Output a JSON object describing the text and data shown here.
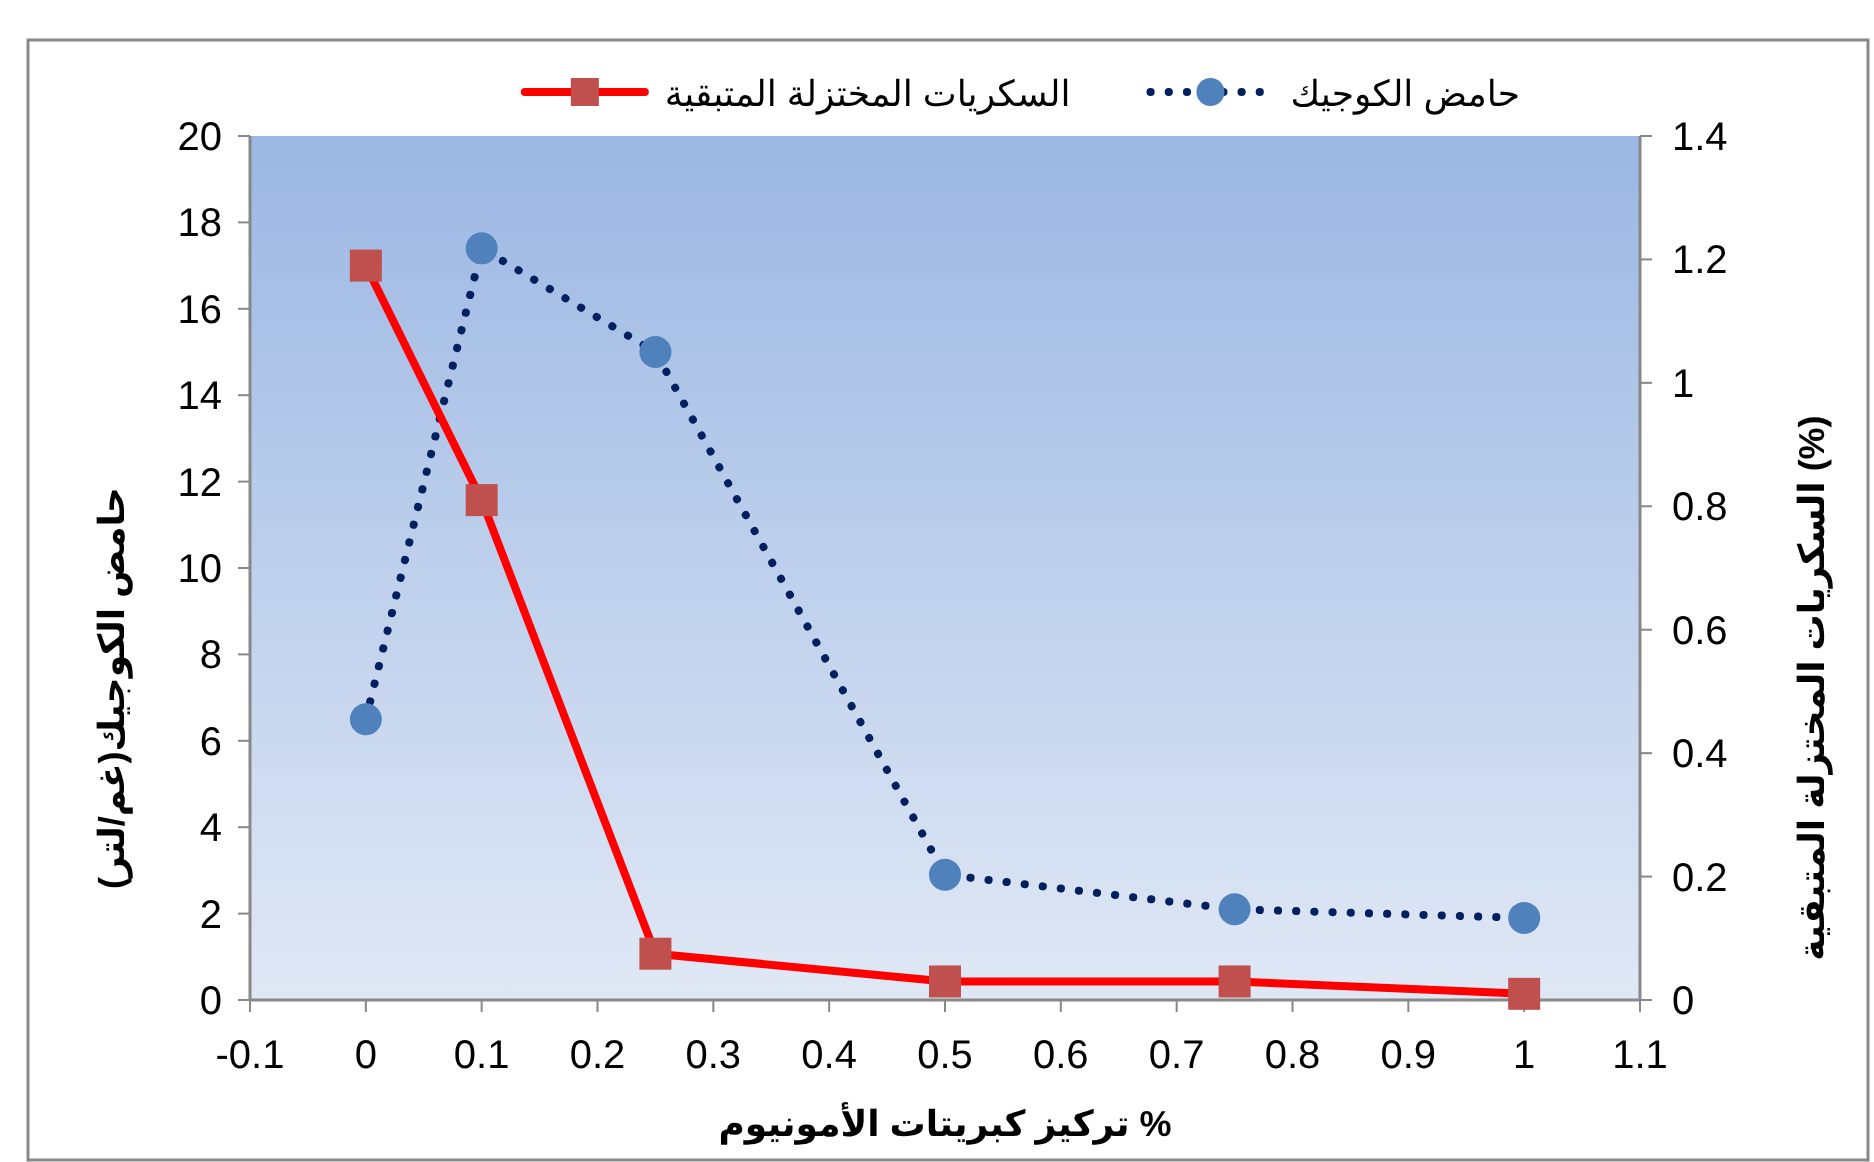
{
  "chart_data": {
    "type": "line",
    "xlabel": "تركيز كبريتات الأمونيوم %",
    "ylabel": "حامض الكوجيك(غم/لتر)",
    "y2label": "السكريات المختزلة المتبقية (%)",
    "x": [
      0,
      0.1,
      0.25,
      0.5,
      0.75,
      1
    ],
    "series": [
      {
        "name": "حامض الكوجيك",
        "color": "#002060",
        "colors": [
          "#4f81bd",
          "#4f81bd",
          "#4f81bd",
          "#4f81bd",
          "#4f81bd",
          "#4f81bd"
        ],
        "values": [
          6.5,
          17.4,
          15.0,
          2.9,
          2.1,
          1.9
        ],
        "marker": "circle",
        "line_style": "dotted"
      },
      {
        "name": "السكريات المختزلة المتبقية",
        "color": "#ff0000",
        "colors": [
          "#c0504d",
          "#c0504d",
          "#c0504d",
          "#c0504d",
          "#c0504d",
          "#c0504d"
        ],
        "values": [
          1.19,
          0.81,
          0.075,
          0.03,
          0.03,
          0.01
        ],
        "marker": "square",
        "line_style": "solid",
        "axis": "y2"
      }
    ],
    "xlim": [
      -0.1,
      1.1
    ],
    "xticks": [
      -0.1,
      0,
      0.1,
      0.2,
      0.3,
      0.4,
      0.5,
      0.6,
      0.7,
      0.8,
      0.9,
      1,
      1.1
    ],
    "ylim": [
      0,
      20
    ],
    "yticks": [
      0,
      2,
      4,
      6,
      8,
      10,
      12,
      14,
      16,
      18,
      20
    ],
    "y2lim": [
      0,
      1.4
    ],
    "y2ticks": [
      0,
      0.2,
      0.4,
      0.6,
      0.8,
      1,
      1.2,
      1.4
    ],
    "legend": "top",
    "grid": false
  }
}
